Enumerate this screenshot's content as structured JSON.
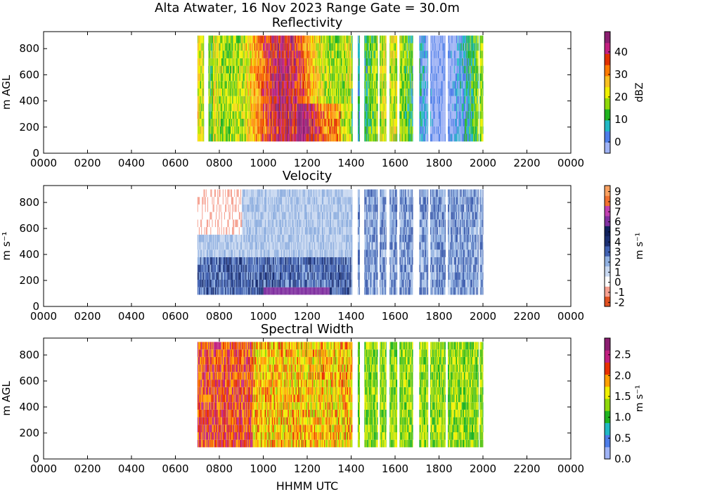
{
  "figure": {
    "suptitle": "Alta Atwater, 16 Nov 2023 Range Gate = 30.0m",
    "xlabel": "HHMM UTC"
  },
  "chart_data": [
    {
      "type": "heatmap",
      "title": "Reflectivity",
      "ylabel": "m AGL",
      "colorbar_label": "dBZ",
      "x_tick_labels": [
        "0000",
        "0200",
        "0400",
        "0600",
        "0800",
        "1000",
        "1200",
        "1400",
        "1600",
        "1800",
        "2000",
        "2200",
        "0000"
      ],
      "x_range_hours": [
        0,
        24
      ],
      "y_ticks": [
        0,
        200,
        400,
        600,
        800
      ],
      "y_range": [
        0,
        930
      ],
      "colorbar_ticks": [
        0,
        10,
        20,
        30,
        40
      ],
      "colorbar_range": [
        -5,
        49
      ],
      "colors": [
        "#9fb3f5",
        "#4d7de8",
        "#21b8c4",
        "#1fb31f",
        "#8fd80a",
        "#f0f000",
        "#f8c020",
        "#ff7a00",
        "#e03000",
        "#c22080",
        "#8a1e70"
      ],
      "data_coverage_utc": [
        [
          7.0,
          7.3
        ],
        [
          7.5,
          14.05
        ],
        [
          14.3,
          14.4
        ],
        [
          14.6,
          15.2
        ],
        [
          15.3,
          15.6
        ],
        [
          15.75,
          16.1
        ],
        [
          16.2,
          16.8
        ],
        [
          17.1,
          17.5
        ],
        [
          17.6,
          18.3
        ],
        [
          18.4,
          19.8
        ],
        [
          19.85,
          20.0
        ]
      ],
      "peak_region": {
        "utc": [
          11.5,
          13.5
        ],
        "height_m": [
          100,
          350
        ],
        "dbz": 30
      }
    },
    {
      "type": "heatmap",
      "title": "Velocity",
      "ylabel": "m s⁻¹",
      "colorbar_label": "m s⁻¹",
      "x_tick_labels": [
        "0000",
        "0200",
        "0400",
        "0600",
        "0800",
        "1000",
        "1200",
        "1400",
        "1600",
        "1800",
        "2000",
        "2200",
        "0000"
      ],
      "x_range_hours": [
        0,
        24
      ],
      "y_ticks": [
        0,
        200,
        400,
        600,
        800
      ],
      "y_range": [
        0,
        930
      ],
      "colorbar_ticks": [
        -2,
        -1,
        0,
        1,
        2,
        3,
        4,
        5,
        6,
        7,
        8,
        9
      ],
      "colorbar_range": [
        -2.4,
        9.6
      ],
      "colors": [
        "#e05020",
        "#f5a090",
        "#ffffff",
        "#c8d8f0",
        "#90b0e0",
        "#4060b0",
        "#1a2e70",
        "#10205a",
        "#8030a0",
        "#c040b0",
        "#f07030",
        "#f8a060"
      ],
      "data_coverage_utc": [
        [
          7.0,
          14.05
        ],
        [
          14.3,
          14.4
        ],
        [
          14.6,
          15.2
        ],
        [
          15.3,
          15.6
        ],
        [
          15.75,
          16.1
        ],
        [
          16.2,
          16.8
        ],
        [
          17.1,
          17.5
        ],
        [
          17.6,
          18.3
        ],
        [
          18.4,
          19.8
        ],
        [
          19.85,
          20.0
        ]
      ]
    },
    {
      "type": "heatmap",
      "title": "Spectral Width",
      "ylabel": "m AGL",
      "colorbar_label": "m s⁻¹",
      "x_tick_labels": [
        "0000",
        "0200",
        "0400",
        "0600",
        "0800",
        "1000",
        "1200",
        "1400",
        "1600",
        "1800",
        "2000",
        "2200",
        "0000"
      ],
      "x_range_hours": [
        0,
        24
      ],
      "y_ticks": [
        0,
        200,
        400,
        600,
        800
      ],
      "y_range": [
        0,
        930
      ],
      "colorbar_ticks": [
        "0.0",
        "0.5",
        "1.0",
        "1.5",
        "2.0",
        "2.5"
      ],
      "colorbar_range": [
        0,
        2.9
      ],
      "colors": [
        "#9fb3f5",
        "#4d7de8",
        "#21b8c4",
        "#1fb31f",
        "#8fd80a",
        "#f0f000",
        "#ffa000",
        "#e83000",
        "#c02080",
        "#8a1e70"
      ],
      "data_coverage_utc": [
        [
          7.0,
          14.05
        ],
        [
          14.3,
          14.4
        ],
        [
          14.6,
          15.2
        ],
        [
          15.3,
          15.6
        ],
        [
          15.75,
          16.1
        ],
        [
          16.2,
          16.8
        ],
        [
          17.1,
          17.5
        ],
        [
          17.6,
          18.3
        ],
        [
          18.4,
          19.8
        ],
        [
          19.85,
          20.0
        ]
      ]
    }
  ]
}
